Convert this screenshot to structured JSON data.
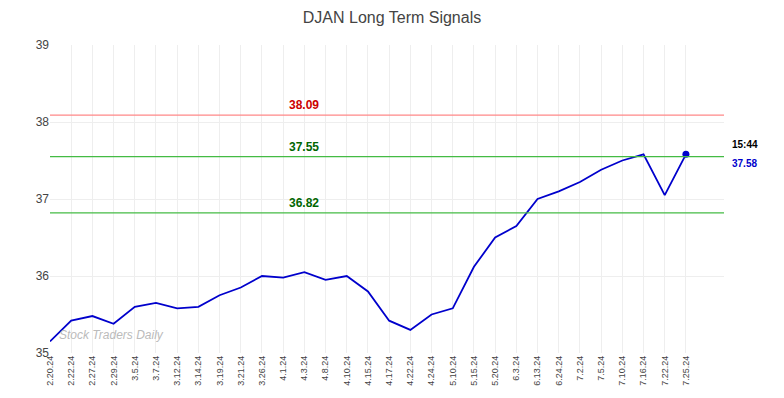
{
  "chart_data": {
    "type": "line",
    "title": "DJAN Long Term Signals",
    "categories": [
      "2.20.24",
      "2.22.24",
      "2.27.24",
      "2.29.24",
      "3.5.24",
      "3.7.24",
      "3.12.24",
      "3.14.24",
      "3.19.24",
      "3.21.24",
      "3.26.24",
      "4.1.24",
      "4.3.24",
      "4.8.24",
      "4.10.24",
      "4.15.24",
      "4.17.24",
      "4.22.24",
      "4.24.24",
      "5.10.24",
      "5.15.24",
      "5.20.24",
      "6.3.24",
      "6.13.24",
      "6.24.24",
      "7.2.24",
      "7.5.24",
      "7.10.24",
      "7.16.24",
      "7.22.24",
      "7.25.24"
    ],
    "values": [
      35.15,
      35.42,
      35.48,
      35.38,
      35.6,
      35.65,
      35.58,
      35.6,
      35.75,
      35.85,
      36.0,
      35.98,
      36.05,
      35.95,
      36.0,
      35.8,
      35.42,
      35.3,
      35.5,
      35.58,
      36.12,
      36.5,
      36.65,
      37.0,
      37.1,
      37.22,
      37.38,
      37.5,
      37.58,
      37.05,
      37.58
    ],
    "color": "#0000CC",
    "ylim": [
      35,
      39
    ],
    "yticks": [
      35,
      36,
      37,
      38,
      39
    ],
    "grid": true,
    "hlines": [
      {
        "value": 38.09,
        "label": "38.09",
        "color": "#FF8888",
        "label_color": "#CC0000"
      },
      {
        "value": 37.55,
        "label": "37.55",
        "color": "#44BB44",
        "label_color": "#006600"
      },
      {
        "value": 36.82,
        "label": "36.82",
        "color": "#44BB44",
        "label_color": "#006600"
      }
    ],
    "last_point": {
      "value": 37.58,
      "time_label": "15:44",
      "value_label": "37.58",
      "color": "#0000CC"
    },
    "watermark": {
      "text": "Stock Traders Daily",
      "color": "#BBBBBB"
    }
  }
}
